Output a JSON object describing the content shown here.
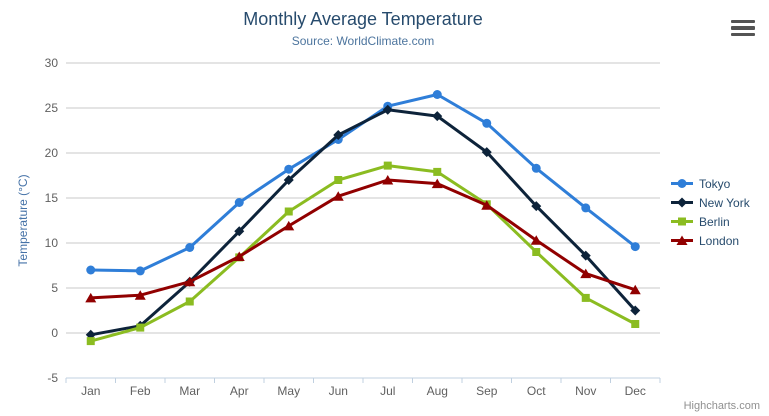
{
  "chart": {
    "credits": "Highcharts.com"
  },
  "chart_data": {
    "type": "line",
    "title": "Monthly Average Temperature",
    "subtitle": "Source: WorldClimate.com",
    "categories": [
      "Jan",
      "Feb",
      "Mar",
      "Apr",
      "May",
      "Jun",
      "Jul",
      "Aug",
      "Sep",
      "Oct",
      "Nov",
      "Dec"
    ],
    "series": [
      {
        "name": "Tokyo",
        "color": "#2f7ed8",
        "marker": "circle",
        "values": [
          7.0,
          6.9,
          9.5,
          14.5,
          18.2,
          21.5,
          25.2,
          26.5,
          23.3,
          18.3,
          13.9,
          9.6
        ]
      },
      {
        "name": "New York",
        "color": "#0d233a",
        "marker": "diamond",
        "values": [
          -0.2,
          0.8,
          5.7,
          11.3,
          17.0,
          22.0,
          24.8,
          24.1,
          20.1,
          14.1,
          8.6,
          2.5
        ]
      },
      {
        "name": "Berlin",
        "color": "#8bbc21",
        "marker": "square",
        "values": [
          -0.9,
          0.6,
          3.5,
          8.4,
          13.5,
          17.0,
          18.6,
          17.9,
          14.3,
          9.0,
          3.9,
          1.0
        ]
      },
      {
        "name": "London",
        "color": "#910000",
        "marker": "triangle",
        "values": [
          3.9,
          4.2,
          5.7,
          8.5,
          11.9,
          15.2,
          17.0,
          16.6,
          14.2,
          10.3,
          6.6,
          4.8
        ]
      }
    ],
    "xlabel": "",
    "ylabel": "Temperature (°C)",
    "ylim": [
      -5,
      30
    ],
    "yticks": [
      -5,
      0,
      5,
      10,
      15,
      20,
      25,
      30
    ],
    "grid": true,
    "legend_position": "right",
    "style": {
      "title_color": "#274b6d",
      "subtitle_color": "#4d759e",
      "axis_label_color": "#606060",
      "yaxis_title_color": "#4572a7",
      "grid_color": "#c8c8c8",
      "axis_line_color": "#c0d0e0",
      "legend_text_color": "#274b6d",
      "credits_color": "#909090",
      "line_width": 3
    }
  }
}
